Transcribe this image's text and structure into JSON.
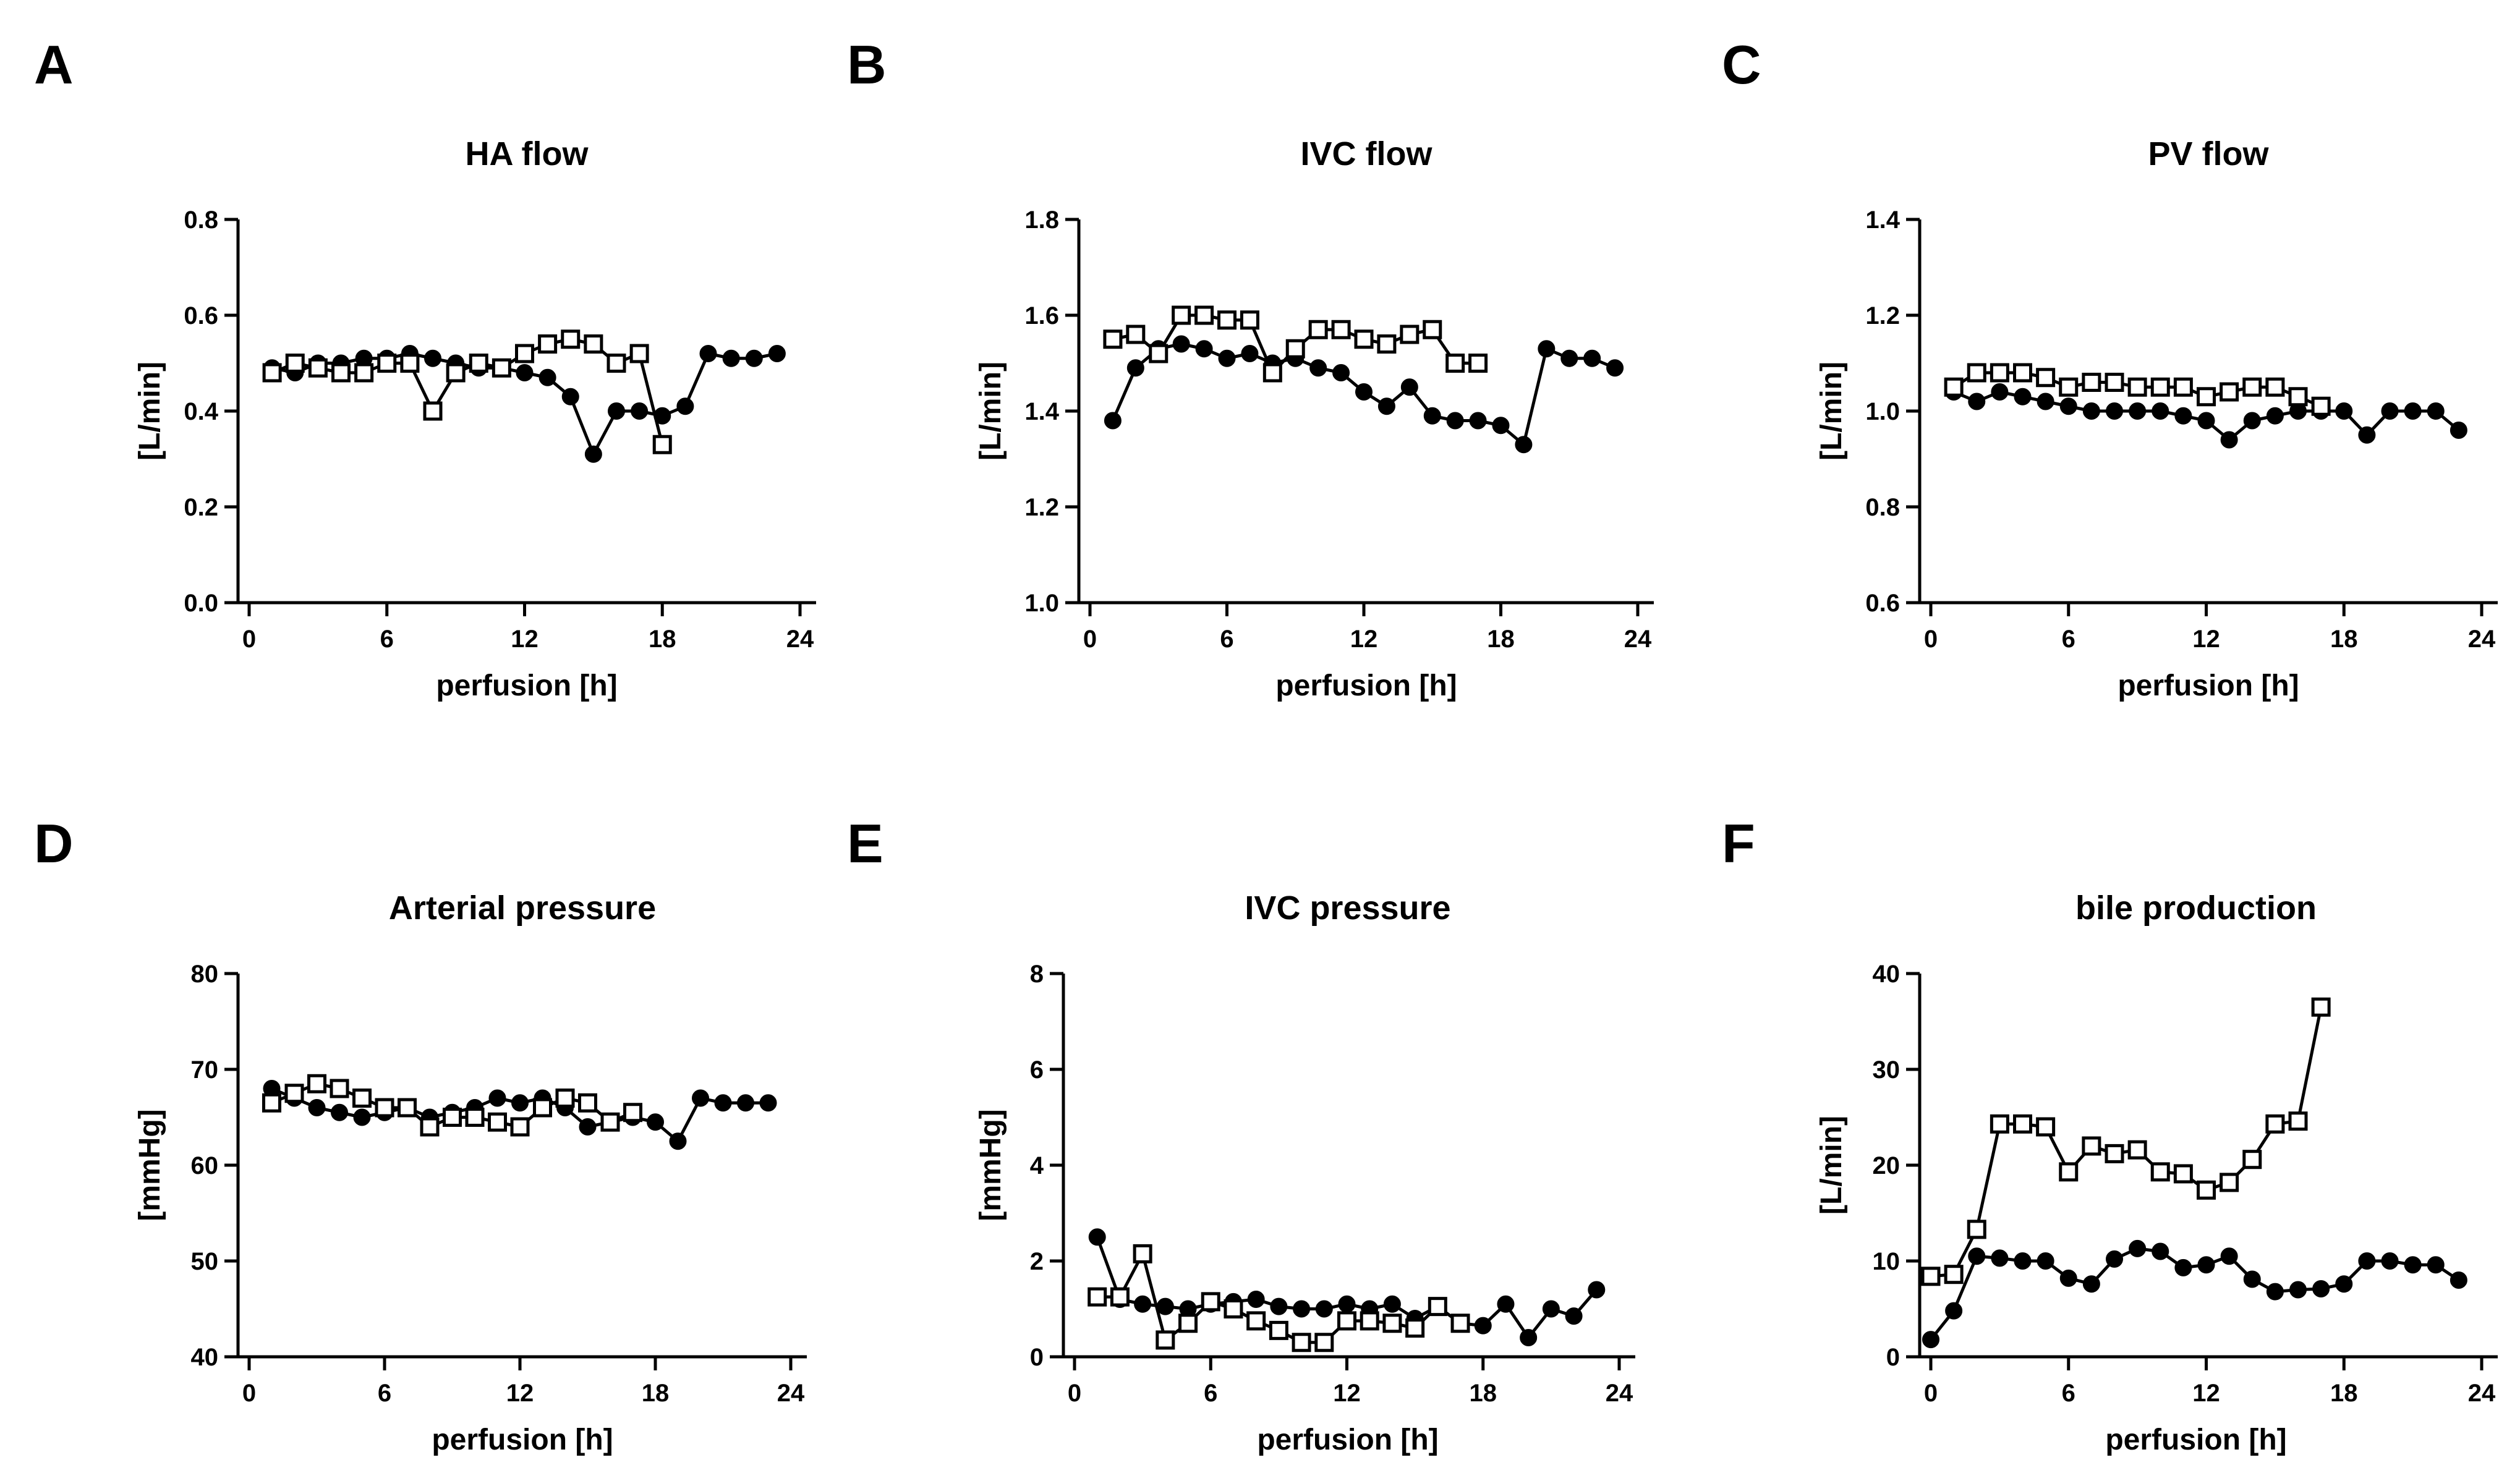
{
  "chart_data": [
    {
      "type": "line",
      "panel": "A",
      "title": "HA flow",
      "xlabel": "perfusion [h]",
      "ylabel": "[L/min]",
      "xlim": [
        0,
        24
      ],
      "ylim": [
        0,
        0.8
      ],
      "xticks": [
        0,
        6,
        12,
        18,
        24
      ],
      "yticks": [
        0.0,
        0.2,
        0.4,
        0.6,
        0.8
      ],
      "ytick_labels": [
        "0.0",
        "0.2",
        "0.4",
        "0.6",
        "0.8"
      ],
      "series": [
        {
          "name": "filled circle",
          "marker": "circle",
          "x": [
            1,
            2,
            3,
            4,
            5,
            6,
            7,
            8,
            9,
            10,
            11,
            12,
            13,
            14,
            15,
            16,
            17,
            18,
            19,
            20,
            21,
            22,
            23
          ],
          "y": [
            0.49,
            0.48,
            0.5,
            0.5,
            0.51,
            0.51,
            0.52,
            0.51,
            0.5,
            0.49,
            0.49,
            0.48,
            0.47,
            0.43,
            0.31,
            0.4,
            0.4,
            0.39,
            0.41,
            0.52,
            0.51,
            0.51,
            0.52
          ]
        },
        {
          "name": "open square",
          "marker": "square",
          "x": [
            1,
            2,
            3,
            4,
            5,
            6,
            7,
            8,
            9,
            10,
            11,
            12,
            13,
            14,
            15,
            16,
            17,
            18
          ],
          "y": [
            0.48,
            0.5,
            0.49,
            0.48,
            0.48,
            0.5,
            0.5,
            0.4,
            0.48,
            0.5,
            0.49,
            0.52,
            0.54,
            0.55,
            0.54,
            0.5,
            0.52,
            0.33
          ]
        }
      ]
    },
    {
      "type": "line",
      "panel": "B",
      "title": "IVC flow",
      "xlabel": "perfusion [h]",
      "ylabel": "[L/min]",
      "xlim": [
        0,
        24
      ],
      "ylim": [
        1.0,
        1.8
      ],
      "xticks": [
        0,
        6,
        12,
        18,
        24
      ],
      "yticks": [
        1.0,
        1.2,
        1.4,
        1.6,
        1.8
      ],
      "ytick_labels": [
        "1.0",
        "1.2",
        "1.4",
        "1.6",
        "1.8"
      ],
      "series": [
        {
          "name": "filled circle",
          "marker": "circle",
          "x": [
            1,
            2,
            3,
            4,
            5,
            6,
            7,
            8,
            9,
            10,
            11,
            12,
            13,
            14,
            15,
            16,
            17,
            18,
            19,
            20,
            21,
            22,
            23
          ],
          "y": [
            1.38,
            1.49,
            1.53,
            1.54,
            1.53,
            1.51,
            1.52,
            1.5,
            1.51,
            1.49,
            1.48,
            1.44,
            1.41,
            1.45,
            1.39,
            1.38,
            1.38,
            1.37,
            1.33,
            1.53,
            1.51,
            1.51,
            1.49
          ]
        },
        {
          "name": "open square",
          "marker": "square",
          "x": [
            1,
            2,
            3,
            4,
            5,
            6,
            7,
            8,
            9,
            10,
            11,
            12,
            13,
            14,
            15,
            16,
            17
          ],
          "y": [
            1.55,
            1.56,
            1.52,
            1.6,
            1.6,
            1.59,
            1.59,
            1.48,
            1.53,
            1.57,
            1.57,
            1.55,
            1.54,
            1.56,
            1.57,
            1.5,
            1.5
          ]
        }
      ]
    },
    {
      "type": "line",
      "panel": "C",
      "title": "PV flow",
      "xlabel": "perfusion [h]",
      "ylabel": "[L/min]",
      "xlim": [
        0,
        24
      ],
      "ylim": [
        0.6,
        1.4
      ],
      "xticks": [
        0,
        6,
        12,
        18,
        24
      ],
      "yticks": [
        0.6,
        0.8,
        1.0,
        1.2,
        1.4
      ],
      "ytick_labels": [
        "0.6",
        "0.8",
        "1.0",
        "1.2",
        "1.4"
      ],
      "series": [
        {
          "name": "filled circle",
          "marker": "circle",
          "x": [
            1,
            2,
            3,
            4,
            5,
            6,
            7,
            8,
            9,
            10,
            11,
            12,
            13,
            14,
            15,
            16,
            17,
            18,
            19,
            20,
            21,
            22,
            23
          ],
          "y": [
            1.04,
            1.02,
            1.04,
            1.03,
            1.02,
            1.01,
            1.0,
            1.0,
            1.0,
            1.0,
            0.99,
            0.98,
            0.94,
            0.98,
            0.99,
            1.0,
            1.0,
            1.0,
            0.95,
            1.0,
            1.0,
            1.0,
            0.96
          ]
        },
        {
          "name": "open square",
          "marker": "square",
          "x": [
            1,
            2,
            3,
            4,
            5,
            6,
            7,
            8,
            9,
            10,
            11,
            12,
            13,
            14,
            15,
            16,
            17
          ],
          "y": [
            1.05,
            1.08,
            1.08,
            1.08,
            1.07,
            1.05,
            1.06,
            1.06,
            1.05,
            1.05,
            1.05,
            1.03,
            1.04,
            1.05,
            1.05,
            1.03,
            1.01
          ]
        }
      ]
    },
    {
      "type": "line",
      "panel": "D",
      "title": "Arterial pressure",
      "xlabel": "perfusion [h]",
      "ylabel": "[mmHg]",
      "xlim": [
        0,
        24
      ],
      "ylim": [
        40,
        80
      ],
      "xticks": [
        0,
        6,
        12,
        18,
        24
      ],
      "yticks": [
        40,
        50,
        60,
        70,
        80
      ],
      "ytick_labels": [
        "40",
        "50",
        "60",
        "70",
        "80"
      ],
      "series": [
        {
          "name": "filled circle",
          "marker": "circle",
          "x": [
            1,
            2,
            3,
            4,
            5,
            6,
            7,
            8,
            9,
            10,
            11,
            12,
            13,
            14,
            15,
            16,
            17,
            18,
            19,
            20,
            21,
            22,
            23
          ],
          "y": [
            68,
            67,
            66,
            65.5,
            65,
            65.5,
            66,
            65,
            65.5,
            66,
            67,
            66.5,
            67,
            66,
            64,
            64.5,
            65,
            64.5,
            62.5,
            67,
            66.5,
            66.5,
            66.5
          ]
        },
        {
          "name": "open square",
          "marker": "square",
          "x": [
            1,
            2,
            3,
            4,
            5,
            6,
            7,
            8,
            9,
            10,
            11,
            12,
            13,
            14,
            15,
            16,
            17
          ],
          "y": [
            66.5,
            67.5,
            68.5,
            68,
            67,
            66,
            66,
            64,
            65,
            65,
            64.5,
            64,
            66,
            67,
            66.5,
            64.5,
            65.5
          ]
        }
      ]
    },
    {
      "type": "line",
      "panel": "E",
      "title": "IVC pressure",
      "xlabel": "perfusion [h]",
      "ylabel": "[mmHg]",
      "xlim": [
        0,
        24
      ],
      "ylim": [
        0,
        8
      ],
      "xticks": [
        0,
        6,
        12,
        18,
        24
      ],
      "yticks": [
        0,
        2,
        4,
        6,
        8
      ],
      "ytick_labels": [
        "0",
        "2",
        "4",
        "6",
        "8"
      ],
      "series": [
        {
          "name": "filled circle",
          "marker": "circle",
          "x": [
            1,
            2,
            3,
            4,
            5,
            6,
            7,
            8,
            9,
            10,
            11,
            12,
            13,
            14,
            15,
            16,
            17,
            18,
            19,
            20,
            21,
            22,
            23
          ],
          "y": [
            2.5,
            1.2,
            1.1,
            1.05,
            1.0,
            1.1,
            1.15,
            1.2,
            1.05,
            1.0,
            1.0,
            1.1,
            1.0,
            1.1,
            0.8,
            1.05,
            0.7,
            0.65,
            1.1,
            0.4,
            1.0,
            0.85,
            1.4
          ]
        },
        {
          "name": "open square",
          "marker": "square",
          "x": [
            1,
            2,
            3,
            4,
            5,
            6,
            7,
            8,
            9,
            10,
            11,
            12,
            13,
            14,
            15,
            16,
            17
          ],
          "y": [
            1.25,
            1.25,
            2.15,
            0.35,
            0.7,
            1.15,
            1.0,
            0.75,
            0.55,
            0.3,
            0.3,
            0.75,
            0.75,
            0.7,
            0.6,
            1.05,
            0.7
          ]
        }
      ]
    },
    {
      "type": "line",
      "panel": "F",
      "title": "bile production",
      "xlabel": "perfusion [h]",
      "ylabel": "[L/min]",
      "xlim": [
        0,
        24
      ],
      "ylim": [
        0,
        40
      ],
      "xticks": [
        0,
        6,
        12,
        18,
        24
      ],
      "yticks": [
        0,
        10,
        20,
        30,
        40
      ],
      "ytick_labels": [
        "0",
        "10",
        "20",
        "30",
        "40"
      ],
      "series": [
        {
          "name": "filled circle",
          "marker": "circle",
          "x": [
            0,
            1,
            2,
            3,
            4,
            5,
            6,
            7,
            8,
            9,
            10,
            11,
            12,
            13,
            14,
            15,
            16,
            17,
            18,
            19,
            20,
            21,
            22,
            23
          ],
          "y": [
            1.8,
            4.8,
            10.5,
            10.3,
            10,
            10,
            8.2,
            7.6,
            10.2,
            11.3,
            11,
            9.3,
            9.6,
            10.5,
            8.1,
            6.8,
            7,
            7.1,
            7.6,
            10,
            10,
            9.6,
            9.6,
            8
          ]
        },
        {
          "name": "open square",
          "marker": "square",
          "x": [
            0,
            1,
            2,
            3,
            4,
            5,
            6,
            7,
            8,
            9,
            10,
            11,
            12,
            13,
            14,
            15,
            16,
            17
          ],
          "y": [
            8.4,
            8.6,
            13.3,
            24.3,
            24.3,
            24,
            19.3,
            22,
            21.2,
            21.6,
            19.3,
            19.1,
            17.4,
            18.2,
            20.6,
            24.3,
            24.6,
            36.5
          ]
        }
      ]
    }
  ]
}
